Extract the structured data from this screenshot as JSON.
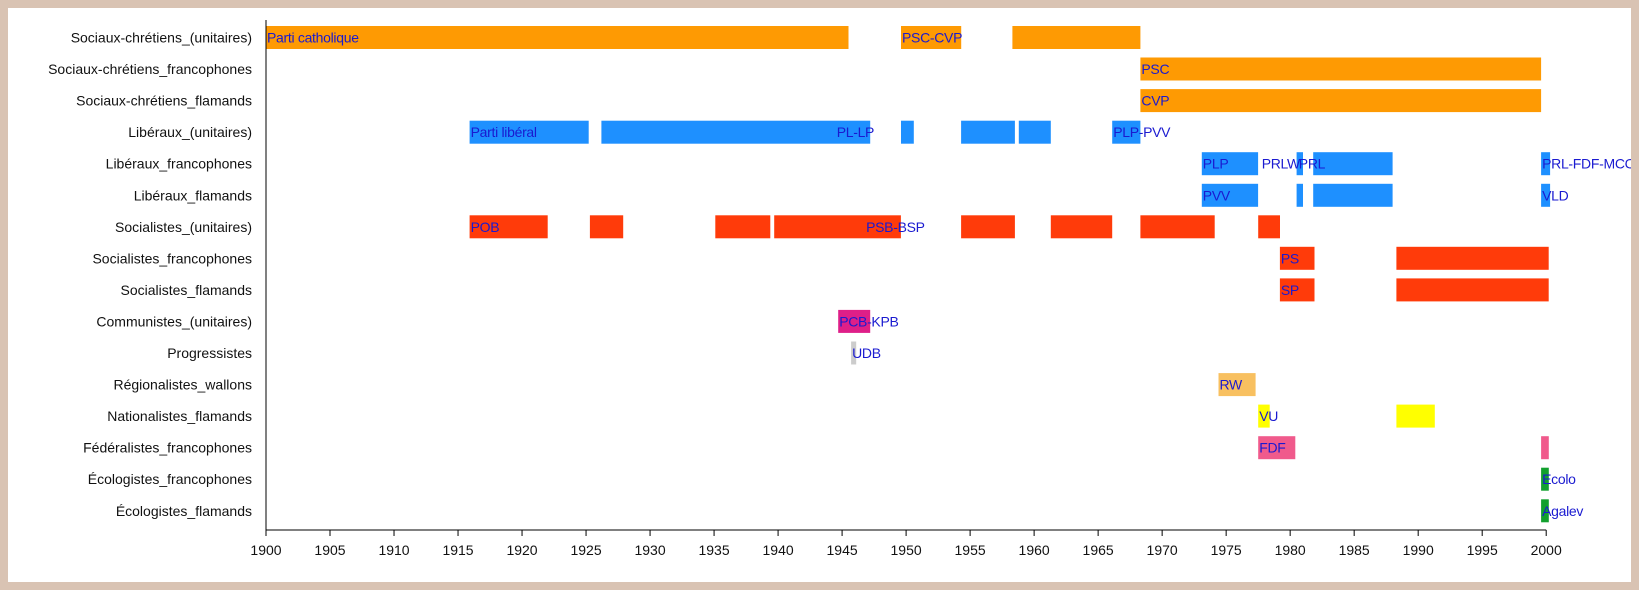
{
  "chart_data": {
    "type": "timeline",
    "xlim": [
      1900,
      2001
    ],
    "x_ticks": [
      1900,
      1905,
      1910,
      1915,
      1920,
      1925,
      1930,
      1935,
      1940,
      1945,
      1950,
      1955,
      1960,
      1965,
      1970,
      1975,
      1980,
      1985,
      1990,
      1995,
      2000
    ],
    "grid": false,
    "colors": {
      "sociaux_chretiens": "#fe9a03",
      "liberaux": "#1e90ff",
      "socialistes": "#ff3b0a",
      "communistes": "#de1f88",
      "progressistes": "#cccccc",
      "regionalistes": "#f8c060",
      "nationalistes": "#ffff00",
      "federalistes": "#f05a8c",
      "ecologistes": "#12a02e",
      "label": "#1a1ad0",
      "axis": "#000000"
    },
    "rows": [
      {
        "name": "Sociaux-chrétiens_(unitaires)",
        "color_key": "sociaux_chretiens",
        "segments": [
          [
            1900,
            1945.5
          ],
          [
            1949.6,
            1954.3
          ],
          [
            1958.3,
            1968.3
          ]
        ],
        "labels": [
          {
            "text": "Parti catholique",
            "x": 1900
          },
          {
            "text": "PSC-CVP",
            "x": 1949.6
          }
        ]
      },
      {
        "name": "Sociaux-chrétiens_francophones",
        "color_key": "sociaux_chretiens",
        "segments": [
          [
            1968.3,
            1999.6
          ]
        ],
        "labels": [
          {
            "text": "PSC",
            "x": 1968.3
          }
        ]
      },
      {
        "name": "Sociaux-chrétiens_flamands",
        "color_key": "sociaux_chretiens",
        "segments": [
          [
            1968.3,
            1999.6
          ]
        ],
        "labels": [
          {
            "text": "CVP",
            "x": 1968.3
          }
        ]
      },
      {
        "name": "Libéraux_(unitaires)",
        "color_key": "liberaux",
        "segments": [
          [
            1915.9,
            1925.2
          ],
          [
            1926.2,
            1947.2
          ],
          [
            1949.6,
            1950.6
          ],
          [
            1954.3,
            1958.5
          ],
          [
            1958.8,
            1961.3
          ],
          [
            1966.1,
            1968.3
          ]
        ],
        "labels": [
          {
            "text": "Parti libéral",
            "x": 1915.9
          },
          {
            "text": "PL-LP",
            "x": 1944.5
          },
          {
            "text": "PLP-PVV",
            "x": 1966.1
          }
        ]
      },
      {
        "name": "Libéraux_francophones",
        "color_key": "liberaux",
        "segments": [
          [
            1973.1,
            1977.5
          ],
          [
            1980.5,
            1981.0
          ],
          [
            1981.8,
            1988.0
          ],
          [
            1999.6,
            2000.3
          ]
        ],
        "labels": [
          {
            "text": "PLP",
            "x": 1973.1
          },
          {
            "text": "PRLW",
            "x": 1977.7
          },
          {
            "text": "PRL",
            "x": 1980.6
          },
          {
            "text": "PRL-FDF-MCC",
            "x": 1999.6
          }
        ]
      },
      {
        "name": "Libéraux_flamands",
        "color_key": "liberaux",
        "segments": [
          [
            1973.1,
            1977.5
          ],
          [
            1980.5,
            1981.0
          ],
          [
            1981.8,
            1988.0
          ],
          [
            1999.6,
            2000.3
          ]
        ],
        "labels": [
          {
            "text": "PVV",
            "x": 1973.1
          },
          {
            "text": "VLD",
            "x": 1999.6
          }
        ]
      },
      {
        "name": "Socialistes_(unitaires)",
        "color_key": "socialistes",
        "segments": [
          [
            1915.9,
            1922.0
          ],
          [
            1925.3,
            1927.9
          ],
          [
            1935.1,
            1939.4
          ],
          [
            1939.7,
            1949.6
          ],
          [
            1954.3,
            1958.5
          ],
          [
            1961.3,
            1966.1
          ],
          [
            1968.3,
            1974.1
          ],
          [
            1977.5,
            1979.2
          ]
        ],
        "labels": [
          {
            "text": "POB",
            "x": 1915.9
          },
          {
            "text": "PSB-BSP",
            "x": 1946.8
          }
        ]
      },
      {
        "name": "Socialistes_francophones",
        "color_key": "socialistes",
        "segments": [
          [
            1979.2,
            1981.9
          ],
          [
            1988.3,
            2000.2
          ]
        ],
        "labels": [
          {
            "text": "PS",
            "x": 1979.2
          }
        ]
      },
      {
        "name": "Socialistes_flamands",
        "color_key": "socialistes",
        "segments": [
          [
            1979.2,
            1981.9
          ],
          [
            1988.3,
            2000.2
          ]
        ],
        "labels": [
          {
            "text": "SP",
            "x": 1979.2
          }
        ]
      },
      {
        "name": "Communistes_(unitaires)",
        "color_key": "communistes",
        "segments": [
          [
            1944.7,
            1947.2
          ]
        ],
        "labels": [
          {
            "text": "PCB-KPB",
            "x": 1944.7
          }
        ]
      },
      {
        "name": "Progressistes",
        "color_key": "progressistes",
        "segments": [
          [
            1945.7,
            1946.1
          ]
        ],
        "labels": [
          {
            "text": "UDB",
            "x": 1945.7
          }
        ]
      },
      {
        "name": "Régionalistes_wallons",
        "color_key": "regionalistes",
        "segments": [
          [
            1974.4,
            1977.3
          ]
        ],
        "labels": [
          {
            "text": "RW",
            "x": 1974.4
          }
        ]
      },
      {
        "name": "Nationalistes_flamands",
        "color_key": "nationalistes",
        "segments": [
          [
            1977.5,
            1978.4
          ],
          [
            1988.3,
            1991.3
          ]
        ],
        "labels": [
          {
            "text": "VU",
            "x": 1977.5
          }
        ]
      },
      {
        "name": "Fédéralistes_francophones",
        "color_key": "federalistes",
        "segments": [
          [
            1977.5,
            1980.4
          ],
          [
            1999.6,
            2000.2
          ]
        ],
        "labels": [
          {
            "text": "FDF",
            "x": 1977.5
          }
        ]
      },
      {
        "name": "Écologistes_francophones",
        "color_key": "ecologistes",
        "segments": [
          [
            1999.6,
            2000.2
          ]
        ],
        "labels": [
          {
            "text": "Ecolo",
            "x": 1999.6
          }
        ]
      },
      {
        "name": "Écologistes_flamands",
        "color_key": "ecologistes",
        "segments": [
          [
            1999.6,
            2000.2
          ]
        ],
        "labels": [
          {
            "text": "Agalev",
            "x": 1999.6
          }
        ]
      }
    ]
  }
}
